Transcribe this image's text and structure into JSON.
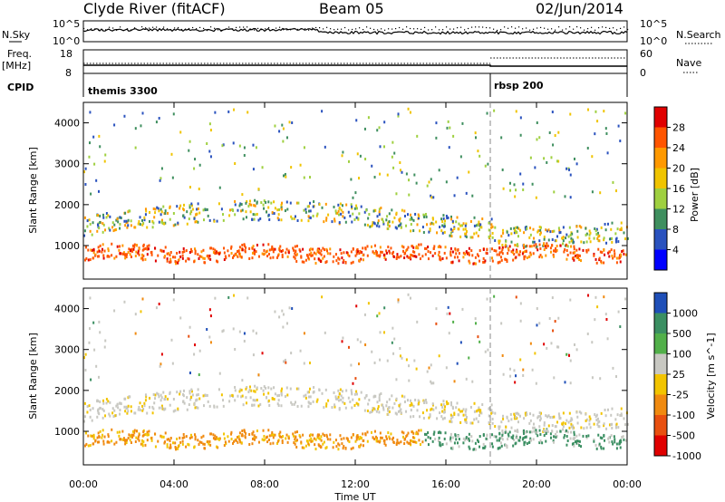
{
  "header": {
    "station": "Clyde River (fitACF)",
    "beam": "Beam 05",
    "date": "02/Jun/2014"
  },
  "strip_panels": {
    "noise": {
      "left_label": "N.Sky",
      "right_label": "N.Search",
      "left_ticks": [
        "10^5",
        "10^0"
      ],
      "right_ticks": [
        "10^5",
        "10^0"
      ]
    },
    "freq": {
      "left_label_top": "Freq.",
      "left_label_bottom": "[MHz]",
      "right_label": "Nave",
      "left_ticks": [
        "18",
        "8"
      ],
      "right_ticks": [
        "60",
        "0"
      ]
    },
    "cpid": {
      "label": "CPID",
      "segments": [
        {
          "name": "themis 3300",
          "start_hour": 0
        },
        {
          "name": "rbsp 200",
          "start_hour": 18
        }
      ]
    }
  },
  "chart_data": [
    {
      "type": "heatmap",
      "name": "power",
      "ylabel": "Slant Range [km]",
      "colorbar_label": "Power [dB]",
      "colorbar_ticks": [
        "28",
        "24",
        "20",
        "16",
        "12",
        "8",
        "4"
      ],
      "colorbar_colors": [
        "#e00000",
        "#ff5500",
        "#ff9900",
        "#f0c400",
        "#9fd040",
        "#3f8f5f",
        "#2a52be",
        "#0000ff"
      ],
      "ylim": [
        180,
        4500
      ],
      "y_ticks": [
        1000,
        2000,
        3000,
        4000
      ],
      "y_tick_labels": [
        "1000",
        "2000",
        "3000",
        "4000"
      ]
    },
    {
      "type": "heatmap",
      "name": "velocity",
      "ylabel": "Slant Range [km]",
      "colorbar_label": "Velocity [m s^-1]",
      "colorbar_ticks": [
        "1000",
        "500",
        "100",
        "25",
        "-25",
        "-100",
        "-500",
        "-1000"
      ],
      "colorbar_colors": [
        "#1f4fb8",
        "#3b8f62",
        "#52b04a",
        "#c8c8c2",
        "#f2c400",
        "#f08a10",
        "#e85010",
        "#e00000"
      ],
      "ylim": [
        180,
        4500
      ],
      "y_ticks": [
        1000,
        2000,
        3000,
        4000
      ],
      "y_tick_labels": [
        "1000",
        "2000",
        "3000",
        "4000"
      ]
    }
  ],
  "xaxis": {
    "label": "Time UT",
    "xlim": [
      0,
      24
    ],
    "ticks": [
      0,
      4,
      8,
      12,
      16,
      20,
      24
    ],
    "tick_labels": [
      "00:00",
      "04:00",
      "08:00",
      "12:00",
      "16:00",
      "20:00",
      "00:00"
    ]
  },
  "colors": {
    "power_band_low": "#ff5500",
    "velocity_ground": "#c8c8c2"
  }
}
